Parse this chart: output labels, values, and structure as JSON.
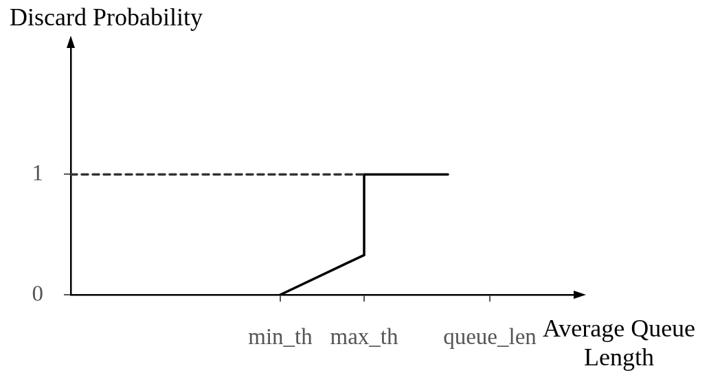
{
  "chart_data": {
    "type": "line",
    "ylabel": "Discard Probability",
    "xlabel": "Average Queue Length",
    "categories": [
      null,
      null,
      null,
      null,
      null,
      "min_th",
      null,
      "max_th",
      null,
      null,
      "queue_len",
      null,
      null
    ],
    "ylim": [
      0,
      2.05
    ],
    "yticks": [
      0,
      1
    ],
    "grid": false,
    "legend": false,
    "marker": "none",
    "line_style": "solid",
    "series": [
      {
        "color": "#333333",
        "line_style": "dashed",
        "values": [
          1,
          null,
          null,
          null,
          null,
          null,
          null,
          1,
          null,
          null,
          null,
          null,
          null
        ]
      },
      {
        "color": "#000000",
        "values": [
          null,
          null,
          null,
          null,
          null,
          0,
          null,
          0.33,
          null,
          null,
          null,
          null,
          null
        ]
      },
      {
        "color": "#000000",
        "x": [
          "max_th",
          "max_th"
        ],
        "values": [
          0.33,
          1
        ]
      },
      {
        "color": "#000000",
        "values": [
          null,
          null,
          null,
          null,
          null,
          null,
          null,
          1,
          null,
          1,
          null,
          null,
          null
        ]
      }
    ]
  }
}
